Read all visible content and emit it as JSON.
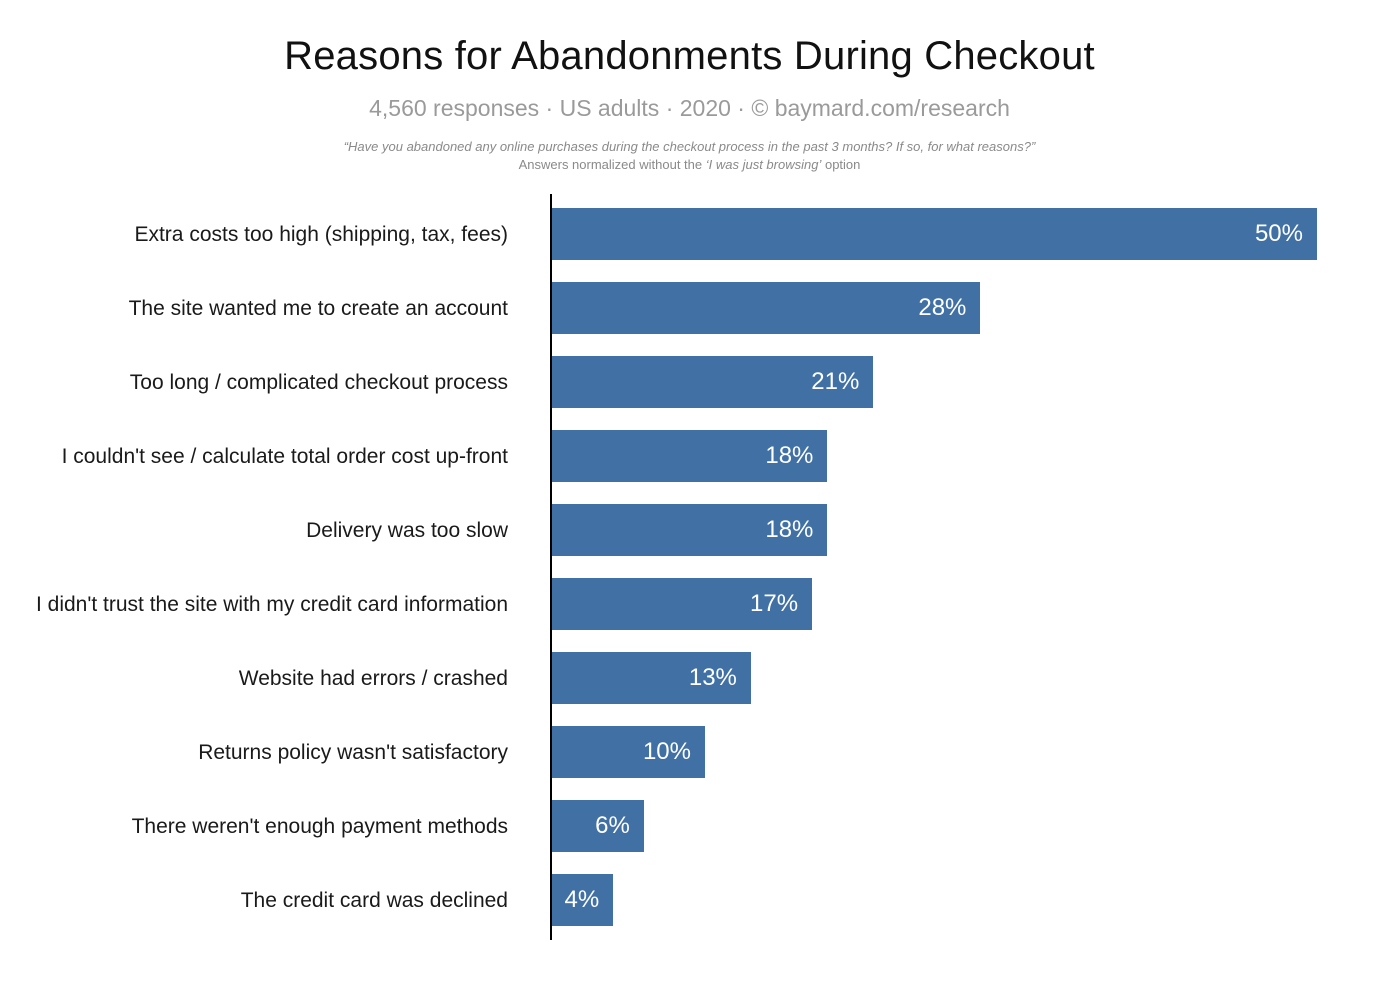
{
  "header": {
    "title": "Reasons for Abandonments During Checkout",
    "subtitle": "4,560 responses  ·  US adults  ·  2020  ·  ©  baymard.com/research",
    "note_line1": "“Have you abandoned any online purchases during the checkout process in the past 3 months? If so, for what reasons?”",
    "note_line2_prefix": "Answers normalized without the ",
    "note_line2_italic": "‘I was just browsing’",
    "note_line2_suffix": " option"
  },
  "chart_data": {
    "type": "bar",
    "orientation": "horizontal",
    "title": "Reasons for Abandonments During Checkout",
    "categories": [
      "Extra costs too high (shipping, tax, fees)",
      "The site wanted me to create an account",
      "Too long / complicated checkout process",
      "I couldn't see / calculate total order cost up-front",
      "Delivery was too slow",
      "I didn't trust the site with my credit card information",
      "Website had errors / crashed",
      "Returns policy wasn't satisfactory",
      "There weren't enough payment methods",
      "The credit card was declined"
    ],
    "values": [
      50,
      28,
      21,
      18,
      18,
      17,
      13,
      10,
      6,
      4
    ],
    "value_suffix": "%",
    "xlim": [
      0,
      50
    ],
    "grid": false,
    "legend": "none",
    "bar_color": "#4170a4",
    "value_label_color": "#ffffff",
    "axis_line_color": "#000000"
  }
}
